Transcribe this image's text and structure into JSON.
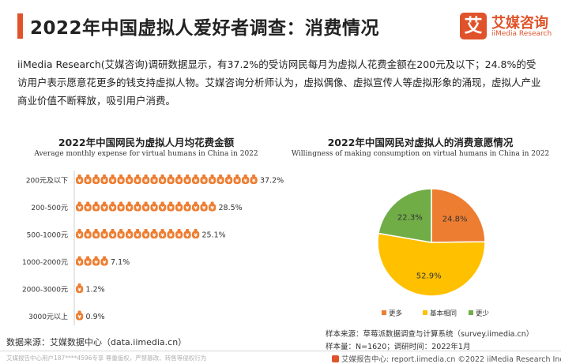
{
  "header": {
    "title": "2022年中国虚拟人爱好者调查：消费情况"
  },
  "logo": {
    "mark": "艾",
    "cn": "艾媒咨询",
    "en": "iiMedia Research"
  },
  "summary": "iiMedia Research(艾媒咨询)调研数据显示，有37.2%的受访网民每月为虚拟人花费金额在200元及以下；24.8%的受访用户表示愿意花更多的钱支持虚拟人物。艾媒咨询分析师认为，虚拟偶像、虚拟宣传人等虚拟形象的涌现，虚拟人产业商业价值不断释放，吸引用户消费。",
  "colors": {
    "accent": "#e0532a",
    "bag": "#ed7d31",
    "more": "#ed7d31",
    "same": "#ffc000",
    "less": "#70ad47"
  },
  "chart_data": [
    {
      "type": "bar",
      "title": "2022年中国网民为虚拟人月均花费金额",
      "subtitle": "Average monthly expense for virtual humans in China in 2022",
      "categories": [
        "200元及以下",
        "200-500元",
        "500-1000元",
        "1000-2000元",
        "2000-3000元",
        "3000元以上"
      ],
      "values": [
        37.2,
        28.5,
        25.1,
        7.1,
        1.2,
        0.9
      ],
      "value_labels": [
        "37.2%",
        "28.5%",
        "25.1%",
        "7.1%",
        "1.2%",
        "0.9%"
      ],
      "orientation": "horizontal",
      "icon": "money-bag-icon"
    },
    {
      "type": "pie",
      "title": "2022年中国网民对虚拟人的消费意愿情况",
      "subtitle": "Willingness of making consumption on virtual humans in China in 2022",
      "labels": [
        "更多",
        "基本相同",
        "更少"
      ],
      "values": [
        24.8,
        52.9,
        22.3
      ],
      "value_labels": [
        "24.8%",
        "52.9%",
        "22.3%"
      ],
      "legend_placement": "bottom"
    }
  ],
  "source": "数据来源：艾媒数据中心（data.iimedia.cn）",
  "sample": {
    "source": "样本来源：草莓派数据调查与计算系统（survey.iimedia.cn）",
    "size": "样本量：N=1620；调研时间：2022年1月"
  },
  "footer": {
    "left": "艾媒报告中心用户187****4596专享 尊重版权，严禁篡改、转售等侵权行为",
    "right": "艾媒报告中心: report.iimedia.cn  ©2022 iiMedia Research Inc"
  }
}
